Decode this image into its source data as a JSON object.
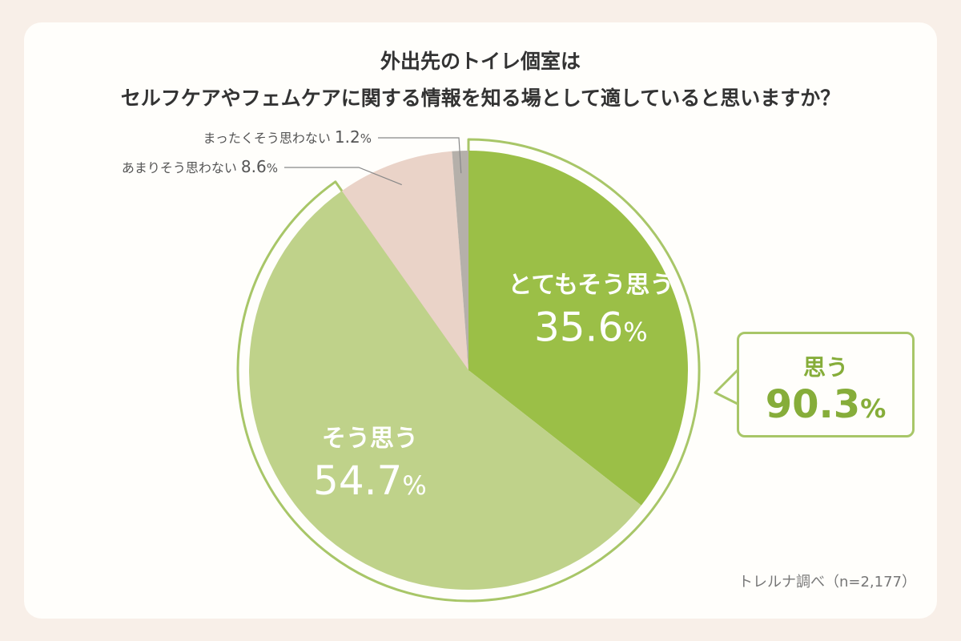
{
  "title": {
    "line1": "外出先のトイレ個室は",
    "line2": "セルフケアやフェムケアに関する情報を知る場として適していると思いますか？"
  },
  "chart_data": {
    "type": "pie",
    "title": "外出先のトイレ個室は セルフケアやフェムケアに関する情報を知る場として適していると思いますか？",
    "unit": "%",
    "slices": [
      {
        "label": "とてもそう思う",
        "value": 35.6,
        "value_text": "35.6",
        "color": "#9bbf47"
      },
      {
        "label": "そう思う",
        "value": 54.7,
        "value_text": "54.7",
        "color": "#bfd28a"
      },
      {
        "label": "あまりそう思わない",
        "value": 8.6,
        "value_text": "8.6",
        "color": "#ead3c8"
      },
      {
        "label": "まったくそう思わない",
        "value": 1.2,
        "value_text": "1.2",
        "color": "#b5b0aa"
      }
    ],
    "group": {
      "label": "思う",
      "value": 90.3,
      "value_text": "90.3",
      "members": [
        "とてもそう思う",
        "そう思う"
      ],
      "color": "#a8c668"
    }
  },
  "callout": {
    "label": "思う",
    "value": "90.3",
    "unit": "%"
  },
  "source": "トレルナ調べ（n=2,177）"
}
